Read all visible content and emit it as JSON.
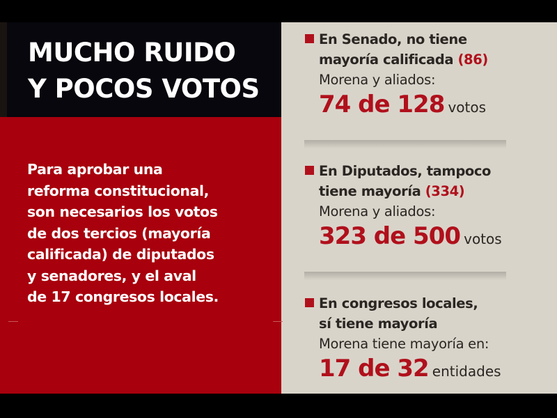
{
  "title": {
    "line1": "MUCHO RUIDO",
    "line2": "Y POCOS VOTOS"
  },
  "intro": [
    "Para aprobar una",
    "reforma constitucional,",
    "son necesarios los votos",
    "de dos tercios (mayoría",
    "calificada) de diputados",
    "y senadores, y el aval",
    "de 17 congresos locales."
  ],
  "colors": {
    "accent_red": "#a8000d",
    "header_dark": "#07070d",
    "panel_beige": "#d9d4ca"
  },
  "items": [
    {
      "head1": "En Senado, no tiene",
      "head2": "mayoría calificada",
      "threshold": "(86)",
      "sub": "Morena y aliados:",
      "figure": "74 de 128",
      "unit": "votos"
    },
    {
      "head1": "En Diputados, tampoco",
      "head2": "tiene mayoría",
      "threshold": "(334)",
      "sub": "Morena y aliados:",
      "figure": "323 de 500",
      "unit": "votos"
    },
    {
      "head1": "En congresos locales,",
      "head2": "sí tiene mayoría",
      "sub": "Morena tiene mayoría en:",
      "figure": "17 de 32",
      "unit": "entidades"
    }
  ]
}
